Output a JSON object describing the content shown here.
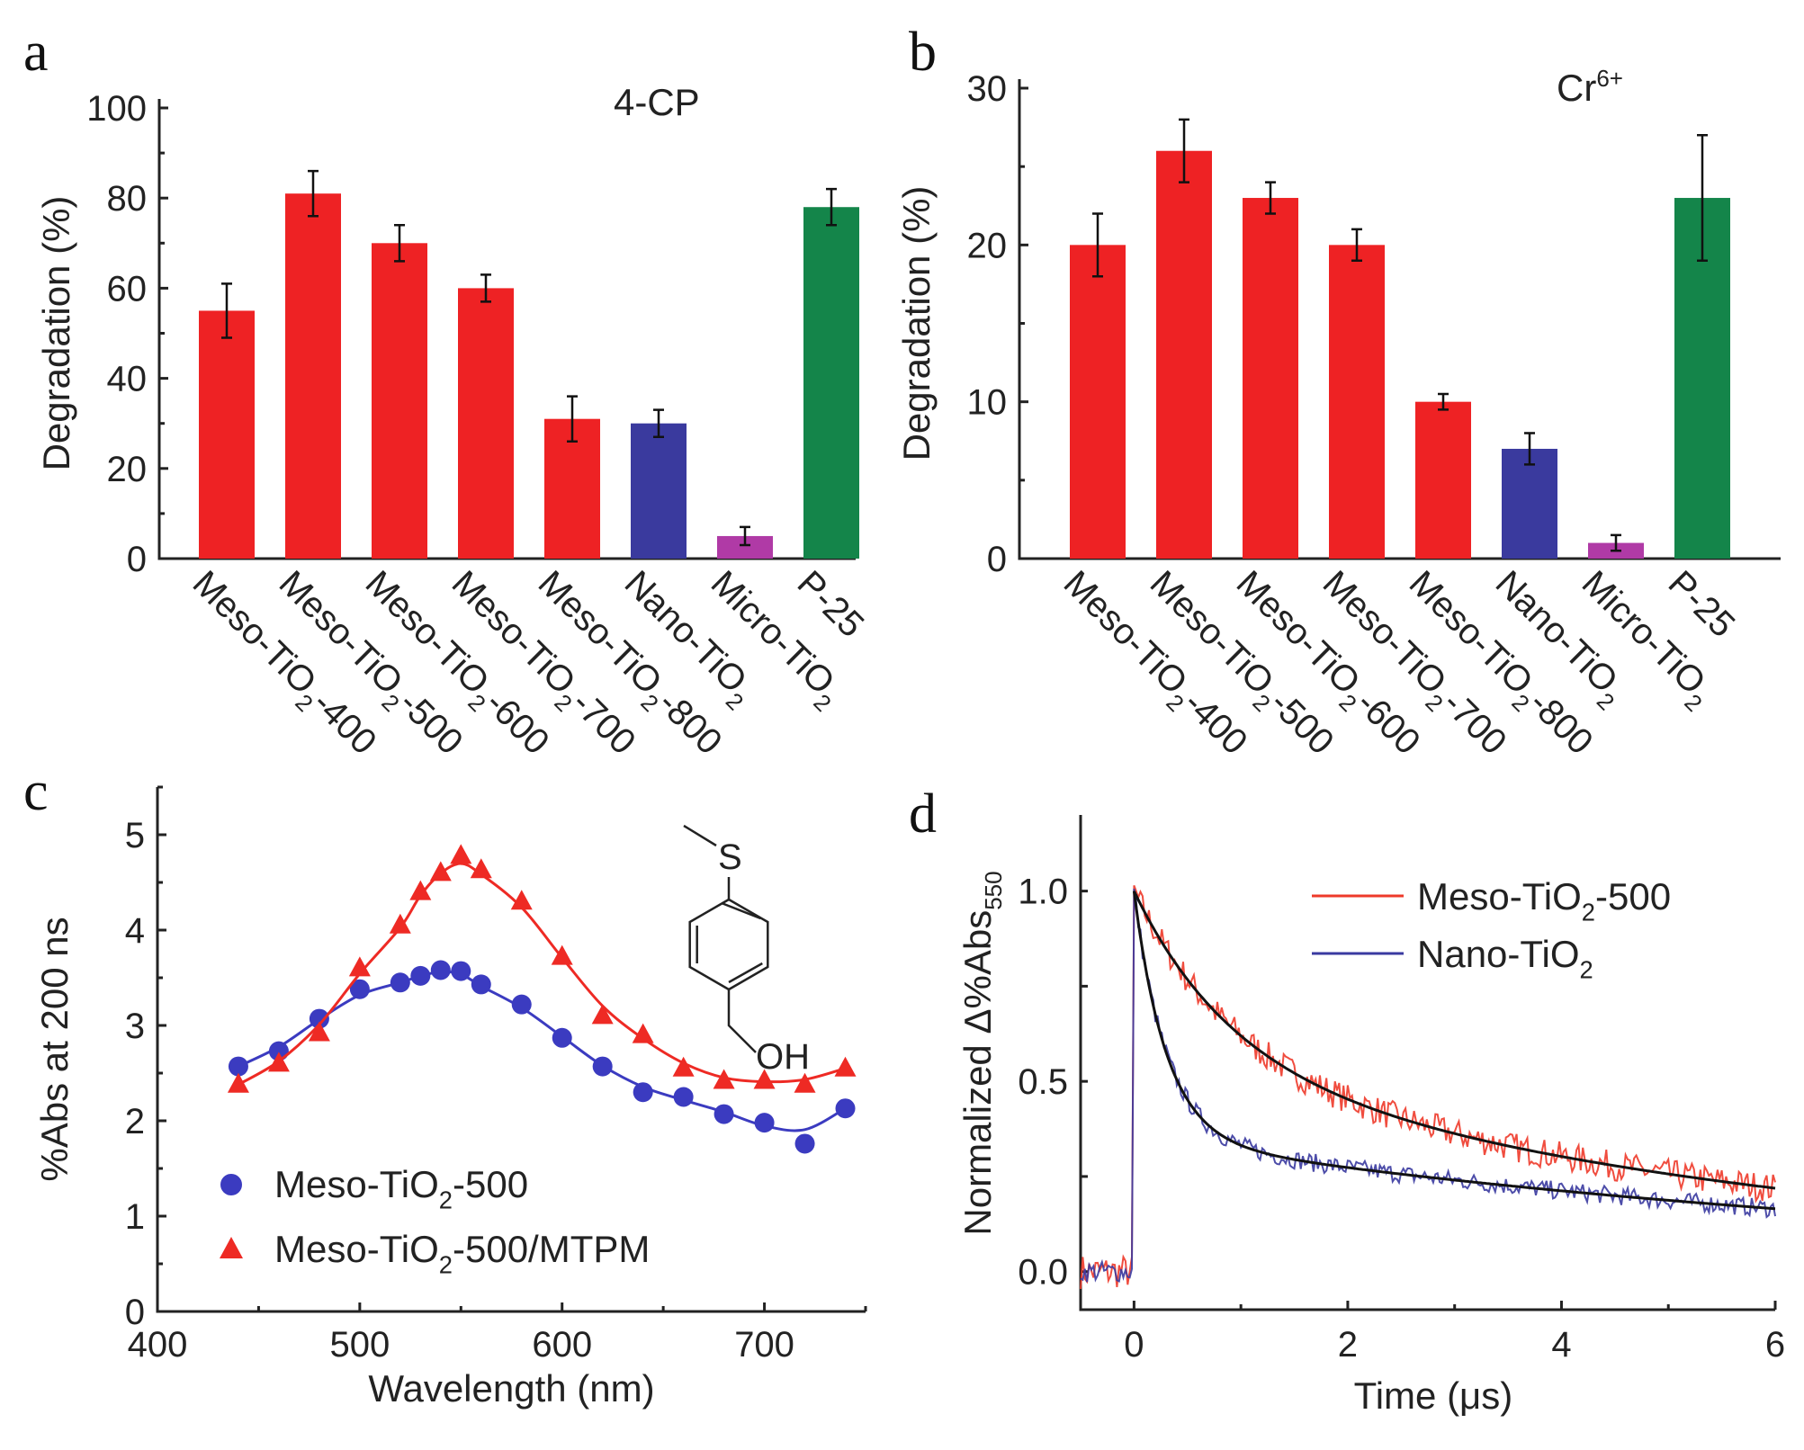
{
  "chart_data": [
    {
      "panel": "a",
      "type": "bar",
      "annotation": "4-CP",
      "ylabel": "Degradation (%)",
      "ylim": [
        0,
        100
      ],
      "yticks": [
        0,
        20,
        40,
        60,
        80,
        100
      ],
      "categories": [
        {
          "pre": "Meso-TiO",
          "sub": "2",
          "post": "-400"
        },
        {
          "pre": "Meso-TiO",
          "sub": "2",
          "post": "-500"
        },
        {
          "pre": "Meso-TiO",
          "sub": "2",
          "post": "-600"
        },
        {
          "pre": "Meso-TiO",
          "sub": "2",
          "post": "-700"
        },
        {
          "pre": "Meso-TiO",
          "sub": "2",
          "post": "-800"
        },
        {
          "pre": "Nano-TiO",
          "sub": "2",
          "post": ""
        },
        {
          "pre": "Micro-TiO",
          "sub": "2",
          "post": ""
        },
        {
          "pre": "P-25",
          "sub": "",
          "post": ""
        }
      ],
      "values": [
        55,
        81,
        70,
        60,
        31,
        30,
        5,
        78
      ],
      "errors": [
        6,
        5,
        4,
        3,
        5,
        3,
        2,
        4
      ],
      "colors": [
        "#ee2224",
        "#ee2224",
        "#ee2224",
        "#ee2224",
        "#ee2224",
        "#3a3a9e",
        "#b03aa6",
        "#14854a"
      ]
    },
    {
      "panel": "b",
      "type": "bar",
      "annotation": "Cr",
      "annotation_sup": "6+",
      "ylabel": "Degradation (%)",
      "ylim": [
        0,
        30
      ],
      "yticks": [
        0,
        10,
        20,
        30
      ],
      "categories": [
        {
          "pre": "Meso-TiO",
          "sub": "2",
          "post": "-400"
        },
        {
          "pre": "Meso-TiO",
          "sub": "2",
          "post": "-500"
        },
        {
          "pre": "Meso-TiO",
          "sub": "2",
          "post": "-600"
        },
        {
          "pre": "Meso-TiO",
          "sub": "2",
          "post": "-700"
        },
        {
          "pre": "Meso-TiO",
          "sub": "2",
          "post": "-800"
        },
        {
          "pre": "Nano-TiO",
          "sub": "2",
          "post": ""
        },
        {
          "pre": "Micro-TiO",
          "sub": "2",
          "post": ""
        },
        {
          "pre": "P-25",
          "sub": "",
          "post": ""
        }
      ],
      "values": [
        20,
        26,
        23,
        20,
        10,
        7,
        1,
        23
      ],
      "errors": [
        2,
        2,
        1,
        1,
        0.5,
        1,
        0.5,
        4
      ],
      "colors": [
        "#ee2224",
        "#ee2224",
        "#ee2224",
        "#ee2224",
        "#ee2224",
        "#3a3a9e",
        "#b03aa6",
        "#14854a"
      ]
    },
    {
      "panel": "c",
      "type": "scatter",
      "xlabel": "Wavelength (nm)",
      "ylabel": "%Abs at 200 ns",
      "xlim": [
        400,
        750
      ],
      "ylim": [
        0,
        5.5
      ],
      "xticks": [
        400,
        500,
        600,
        700
      ],
      "yticks": [
        0,
        1,
        2,
        3,
        4,
        5
      ],
      "inset_label": {
        "s": "S",
        "oh": "OH"
      },
      "x": [
        440,
        460,
        480,
        500,
        520,
        530,
        540,
        550,
        560,
        580,
        600,
        620,
        640,
        660,
        680,
        700,
        720,
        740
      ],
      "series": [
        {
          "name": {
            "pre": "Meso-TiO",
            "sub": "2",
            "post": "-500"
          },
          "marker": "circle",
          "color": "#3b3bc0",
          "values": [
            2.57,
            2.73,
            3.07,
            3.38,
            3.45,
            3.52,
            3.58,
            3.57,
            3.43,
            3.22,
            2.87,
            2.57,
            2.3,
            2.25,
            2.07,
            1.98,
            1.76,
            2.13
          ]
        },
        {
          "name": {
            "pre": "Meso-TiO",
            "sub": "2",
            "post": "-500/MTPM"
          },
          "marker": "triangle",
          "color": "#ee2a24",
          "values": [
            2.38,
            2.6,
            2.92,
            3.6,
            4.05,
            4.4,
            4.6,
            4.78,
            4.63,
            4.3,
            3.72,
            3.1,
            2.9,
            2.55,
            2.42,
            2.42,
            2.38,
            2.55
          ]
        }
      ]
    },
    {
      "panel": "d",
      "type": "line",
      "xlabel": "Time (μs)",
      "ylabel": "Normalized Δ%Abs",
      "ylabel_sub": "550",
      "xlim": [
        -0.5,
        6
      ],
      "ylim": [
        -0.1,
        1.2
      ],
      "xticks": [
        0,
        2,
        4,
        6
      ],
      "yticks": [
        "0.0",
        "0.5",
        "1.0"
      ],
      "series": [
        {
          "name": {
            "pre": "Meso-TiO",
            "sub": "2",
            "post": "-500"
          },
          "color": "#ee3a2a",
          "fit": {
            "a1": 0.45,
            "tau1": 0.9,
            "a2": 0.55,
            "tau2": 6.5
          }
        },
        {
          "name": {
            "pre": "Nano-TiO",
            "sub": "2",
            "post": ""
          },
          "color": "#3a3aa0",
          "fit": {
            "a1": 0.65,
            "tau1": 0.3,
            "a2": 0.35,
            "tau2": 8
          }
        }
      ],
      "fit_color": "#111111"
    }
  ]
}
